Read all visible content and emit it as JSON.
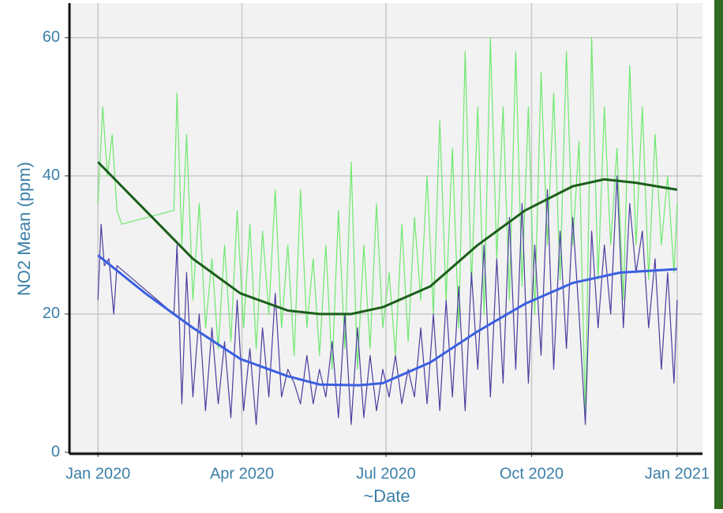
{
  "chart_data": {
    "type": "line",
    "y_label": "NO2 Mean (ppm)",
    "x_label": "~Date",
    "xlim": [
      -18,
      382
    ],
    "ylim": [
      0,
      65
    ],
    "xticks": [
      {
        "value": 0,
        "label": "Jan 2020"
      },
      {
        "value": 91,
        "label": "Apr 2020"
      },
      {
        "value": 182,
        "label": "Jul 2020"
      },
      {
        "value": 274,
        "label": "Oct 2020"
      },
      {
        "value": 366,
        "label": "Jan 2021"
      }
    ],
    "yticks": [
      0,
      20,
      40,
      60
    ],
    "grid": true,
    "series": [
      {
        "color": "#6ee86e",
        "width": 1.2,
        "x": [
          0,
          3,
          6,
          9,
          12,
          15,
          48,
          50,
          53,
          56,
          60,
          64,
          68,
          72,
          76,
          80,
          84,
          88,
          92,
          96,
          100,
          104,
          108,
          112,
          116,
          120,
          124,
          128,
          132,
          136,
          140,
          144,
          148,
          152,
          156,
          160,
          164,
          168,
          172,
          176,
          180,
          184,
          188,
          192,
          196,
          200,
          204,
          208,
          212,
          216,
          220,
          224,
          228,
          232,
          236,
          240,
          244,
          248,
          252,
          256,
          260,
          264,
          268,
          272,
          276,
          280,
          284,
          288,
          292,
          296,
          300,
          304,
          308,
          312,
          316,
          320,
          324,
          328,
          332,
          336,
          340,
          344,
          348,
          352,
          356,
          360,
          364,
          366
        ],
        "values": [
          36,
          50,
          40,
          46,
          35,
          33,
          35,
          52,
          30,
          46,
          22,
          36,
          18,
          28,
          15,
          30,
          16,
          35,
          18,
          33,
          15,
          32,
          20,
          38,
          18,
          30,
          14,
          38,
          18,
          28,
          14,
          30,
          12,
          35,
          15,
          42,
          12,
          30,
          15,
          36,
          18,
          26,
          14,
          33,
          16,
          34,
          22,
          40,
          20,
          48,
          22,
          44,
          18,
          58,
          24,
          50,
          20,
          60,
          28,
          50,
          22,
          58,
          24,
          50,
          20,
          55,
          30,
          52,
          25,
          58,
          30,
          45,
          5,
          60,
          25,
          50,
          30,
          44,
          22,
          56,
          30,
          50,
          25,
          46,
          30,
          40,
          26,
          36
        ]
      },
      {
        "color": "#4b3d9e",
        "width": 1.2,
        "x": [
          0,
          2,
          4,
          7,
          10,
          12,
          48,
          50,
          53,
          56,
          60,
          64,
          68,
          72,
          76,
          80,
          84,
          88,
          92,
          96,
          100,
          104,
          108,
          112,
          116,
          120,
          124,
          128,
          132,
          136,
          140,
          144,
          148,
          152,
          156,
          160,
          164,
          168,
          172,
          176,
          180,
          184,
          188,
          192,
          196,
          200,
          204,
          208,
          212,
          216,
          220,
          224,
          228,
          232,
          236,
          240,
          244,
          248,
          252,
          256,
          260,
          264,
          268,
          272,
          276,
          280,
          284,
          288,
          292,
          296,
          300,
          304,
          308,
          312,
          316,
          320,
          324,
          328,
          332,
          336,
          340,
          344,
          348,
          352,
          356,
          360,
          364,
          366
        ],
        "values": [
          22,
          33,
          27,
          28,
          20,
          27,
          20,
          30,
          7,
          26,
          8,
          20,
          6,
          18,
          7,
          16,
          5,
          22,
          6,
          15,
          4,
          18,
          8,
          23,
          8,
          12,
          10,
          7,
          14,
          7,
          12,
          8,
          16,
          5,
          20,
          4,
          18,
          5,
          14,
          6,
          12,
          8,
          14,
          7,
          12,
          8,
          18,
          7,
          20,
          6,
          22,
          8,
          24,
          6,
          26,
          12,
          30,
          8,
          28,
          10,
          34,
          12,
          36,
          10,
          30,
          14,
          38,
          12,
          32,
          15,
          34,
          20,
          4,
          32,
          18,
          30,
          20,
          40,
          18,
          36,
          26,
          32,
          18,
          28,
          12,
          26,
          10,
          22
        ]
      },
      {
        "color": "#1b5e1b",
        "width": 3,
        "x": [
          0,
          30,
          60,
          90,
          120,
          140,
          160,
          180,
          210,
          240,
          270,
          300,
          320,
          340,
          366
        ],
        "values": [
          42,
          35,
          28,
          23,
          20.5,
          20,
          20,
          21,
          24,
          30,
          35,
          38.5,
          39.5,
          39,
          38
        ]
      },
      {
        "color": "#3b5fe0",
        "width": 3,
        "x": [
          0,
          30,
          60,
          90,
          120,
          140,
          165,
          180,
          210,
          240,
          270,
          300,
          330,
          366
        ],
        "values": [
          28.5,
          23,
          18,
          13.5,
          11,
          9.8,
          9.7,
          10,
          13,
          17.5,
          21.5,
          24.5,
          26,
          26.5
        ]
      }
    ]
  }
}
